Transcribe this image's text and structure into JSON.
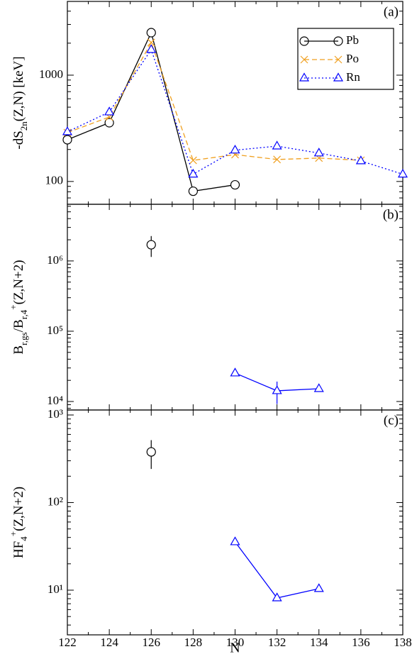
{
  "chart_data": [
    {
      "type": "line",
      "panel_label": "(a)",
      "ylabel": [
        {
          "text": "-dS"
        },
        {
          "text": "2n",
          "sub": true
        },
        {
          "text": "(Z,N)  [keV]"
        }
      ],
      "xlim": [
        122,
        138
      ],
      "xticks": [
        122,
        124,
        126,
        128,
        130,
        132,
        134,
        136,
        138
      ],
      "ylim": [
        61,
        4940
      ],
      "yticks": [
        100,
        1000
      ],
      "log": true,
      "legend": "upper right",
      "series": [
        {
          "name": "Pb",
          "color": "#000000",
          "marker": "circle",
          "linestyle": "solid",
          "x": [
            122,
            124,
            126,
            128,
            130
          ],
          "values": [
            247,
            357,
            2512,
            81,
            93
          ]
        },
        {
          "name": "Po",
          "color": "#f0a020",
          "marker": "x",
          "linestyle": "dashed",
          "x": [
            122,
            124,
            126,
            128,
            130,
            132,
            134,
            136
          ],
          "values": [
            288,
            404,
            2027,
            158,
            179,
            161,
            166,
            158
          ]
        },
        {
          "name": "Rn",
          "color": "#0000ff",
          "marker": "triangle",
          "linestyle": "dotted",
          "x": [
            122,
            124,
            126,
            128,
            130,
            132,
            134,
            136,
            138
          ],
          "values": [
            293,
            450,
            1738,
            117,
            197,
            215,
            185,
            156,
            117
          ]
        }
      ]
    },
    {
      "type": "line",
      "panel_label": "(b)",
      "ylabel": [
        {
          "text": "B"
        },
        {
          "text": "r,gs",
          "sub": true
        },
        {
          "text": "/B"
        },
        {
          "text": "r,4",
          "sub": true
        },
        {
          "text": "+",
          "sup": true
        },
        {
          "text": "(Z,N+2)"
        }
      ],
      "xlim": [
        122,
        138
      ],
      "xticks": [
        122,
        124,
        126,
        128,
        130,
        132,
        134,
        136,
        138
      ],
      "ylim": [
        7570,
        6400000
      ],
      "log": true,
      "yticks": [
        {
          "value": 10000,
          "label": "10⁴"
        },
        {
          "value": 100000,
          "label": "10⁵"
        },
        {
          "value": 1000000,
          "label": "10⁶"
        }
      ],
      "series": [
        {
          "color": "#000000",
          "marker": "circle",
          "linestyle": "none",
          "x": [
            126
          ],
          "values": [
            1700000
          ],
          "errors": [
            560000
          ]
        },
        {
          "color": "#0000ff",
          "marker": "triangle",
          "linestyle": "solid",
          "x": [
            130,
            132,
            134
          ],
          "values": [
            25400,
            14200,
            15200
          ],
          "errors": [
            null,
            5000,
            null
          ]
        }
      ]
    },
    {
      "type": "line",
      "panel_label": "(c)",
      "ylabel": [
        {
          "text": "HF"
        },
        {
          "text": "4",
          "sub": true
        },
        {
          "text": "+",
          "sup": true
        },
        {
          "text": "(Z,N+2)"
        }
      ],
      "xlabel": "N",
      "xlim": [
        122,
        138
      ],
      "xticks": [
        122,
        124,
        126,
        128,
        130,
        132,
        134,
        136,
        138
      ],
      "ylim": [
        3.09,
        1140
      ],
      "log": true,
      "yticks": [
        {
          "value": 10,
          "label": "10¹"
        },
        {
          "value": 100,
          "label": "10²"
        },
        {
          "value": 1000,
          "label": "10³"
        }
      ],
      "series": [
        {
          "color": "#000000",
          "marker": "circle",
          "linestyle": "none",
          "x": [
            126
          ],
          "values": [
            379
          ],
          "errors": [
            137
          ]
        },
        {
          "color": "#0000ff",
          "marker": "triangle",
          "linestyle": "solid",
          "x": [
            130,
            132,
            134
          ],
          "values": [
            35.6,
            8.15,
            10.4
          ]
        }
      ]
    }
  ]
}
